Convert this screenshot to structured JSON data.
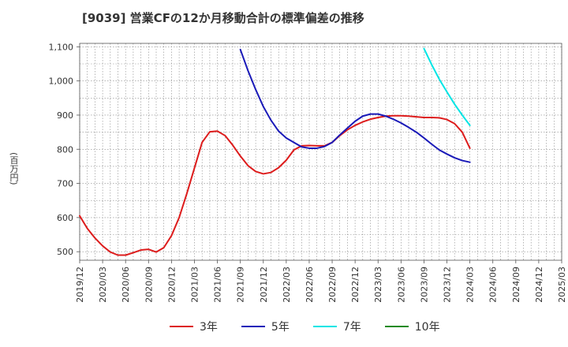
{
  "title": "[9039]  営業CFの12か月移動合計の標準偏差の推移",
  "chart_data": {
    "type": "line",
    "ylabel": "(百万円)",
    "ylim": [
      475,
      1110
    ],
    "yticks": [
      500,
      600,
      700,
      800,
      900,
      1000,
      1100
    ],
    "ytick_labels": [
      "500",
      "600",
      "700",
      "800",
      "900",
      "1,000",
      "1,100"
    ],
    "x_labels": [
      "2019/12",
      "2020/03",
      "2020/06",
      "2020/09",
      "2020/12",
      "2021/03",
      "2021/06",
      "2021/09",
      "2021/12",
      "2022/03",
      "2022/06",
      "2022/09",
      "2022/12",
      "2023/03",
      "2023/06",
      "2023/09",
      "2023/12",
      "2024/03",
      "2024/06",
      "2024/09",
      "2024/12",
      "2025/03"
    ],
    "grid": true,
    "legend_position": "bottom",
    "series": [
      {
        "name": "3年",
        "color": "#dd1c1c",
        "points": [
          [
            "2019/12",
            605
          ],
          [
            "2020/01",
            568
          ],
          [
            "2020/02",
            540
          ],
          [
            "2020/03",
            517
          ],
          [
            "2020/04",
            499
          ],
          [
            "2020/05",
            490
          ],
          [
            "2020/06",
            490
          ],
          [
            "2020/07",
            497
          ],
          [
            "2020/08",
            505
          ],
          [
            "2020/09",
            507
          ],
          [
            "2020/10",
            499
          ],
          [
            "2020/11",
            512
          ],
          [
            "2020/12",
            547
          ],
          [
            "2021/01",
            600
          ],
          [
            "2021/02",
            670
          ],
          [
            "2021/03",
            745
          ],
          [
            "2021/04",
            820
          ],
          [
            "2021/05",
            851
          ],
          [
            "2021/06",
            853
          ],
          [
            "2021/07",
            840
          ],
          [
            "2021/08",
            812
          ],
          [
            "2021/09",
            780
          ],
          [
            "2021/10",
            752
          ],
          [
            "2021/11",
            735
          ],
          [
            "2021/12",
            728
          ],
          [
            "2022/01",
            732
          ],
          [
            "2022/02",
            746
          ],
          [
            "2022/03",
            768
          ],
          [
            "2022/04",
            798
          ],
          [
            "2022/05",
            810
          ],
          [
            "2022/06",
            811
          ],
          [
            "2022/07",
            810
          ],
          [
            "2022/08",
            810
          ],
          [
            "2022/09",
            820
          ],
          [
            "2022/10",
            840
          ],
          [
            "2022/11",
            857
          ],
          [
            "2022/12",
            870
          ],
          [
            "2023/01",
            880
          ],
          [
            "2023/02",
            888
          ],
          [
            "2023/03",
            893
          ],
          [
            "2023/04",
            897
          ],
          [
            "2023/05",
            898
          ],
          [
            "2023/06",
            898
          ],
          [
            "2023/07",
            897
          ],
          [
            "2023/08",
            895
          ],
          [
            "2023/09",
            893
          ],
          [
            "2023/10",
            893
          ],
          [
            "2023/11",
            892
          ],
          [
            "2023/12",
            887
          ],
          [
            "2024/01",
            875
          ],
          [
            "2024/02",
            850
          ],
          [
            "2024/03",
            803
          ]
        ]
      },
      {
        "name": "5年",
        "color": "#1a1ab8",
        "points": [
          [
            "2021/09",
            1092
          ],
          [
            "2021/10",
            1030
          ],
          [
            "2021/11",
            975
          ],
          [
            "2021/12",
            925
          ],
          [
            "2022/01",
            885
          ],
          [
            "2022/02",
            853
          ],
          [
            "2022/03",
            833
          ],
          [
            "2022/04",
            820
          ],
          [
            "2022/05",
            807
          ],
          [
            "2022/06",
            803
          ],
          [
            "2022/07",
            803
          ],
          [
            "2022/08",
            808
          ],
          [
            "2022/09",
            820
          ],
          [
            "2022/10",
            842
          ],
          [
            "2022/11",
            862
          ],
          [
            "2022/12",
            882
          ],
          [
            "2023/01",
            897
          ],
          [
            "2023/02",
            903
          ],
          [
            "2023/03",
            903
          ],
          [
            "2023/04",
            897
          ],
          [
            "2023/05",
            888
          ],
          [
            "2023/06",
            877
          ],
          [
            "2023/07",
            864
          ],
          [
            "2023/08",
            850
          ],
          [
            "2023/09",
            833
          ],
          [
            "2023/10",
            815
          ],
          [
            "2023/11",
            798
          ],
          [
            "2023/12",
            786
          ],
          [
            "2024/01",
            775
          ],
          [
            "2024/02",
            767
          ],
          [
            "2024/03",
            762
          ]
        ]
      },
      {
        "name": "7年",
        "color": "#00e5e5",
        "points": [
          [
            "2023/09",
            1095
          ],
          [
            "2023/10",
            1048
          ],
          [
            "2023/11",
            1005
          ],
          [
            "2023/12",
            968
          ],
          [
            "2024/01",
            932
          ],
          [
            "2024/02",
            900
          ],
          [
            "2024/03",
            870
          ]
        ]
      },
      {
        "name": "10年",
        "color": "#1e8a1e",
        "points": []
      }
    ]
  }
}
